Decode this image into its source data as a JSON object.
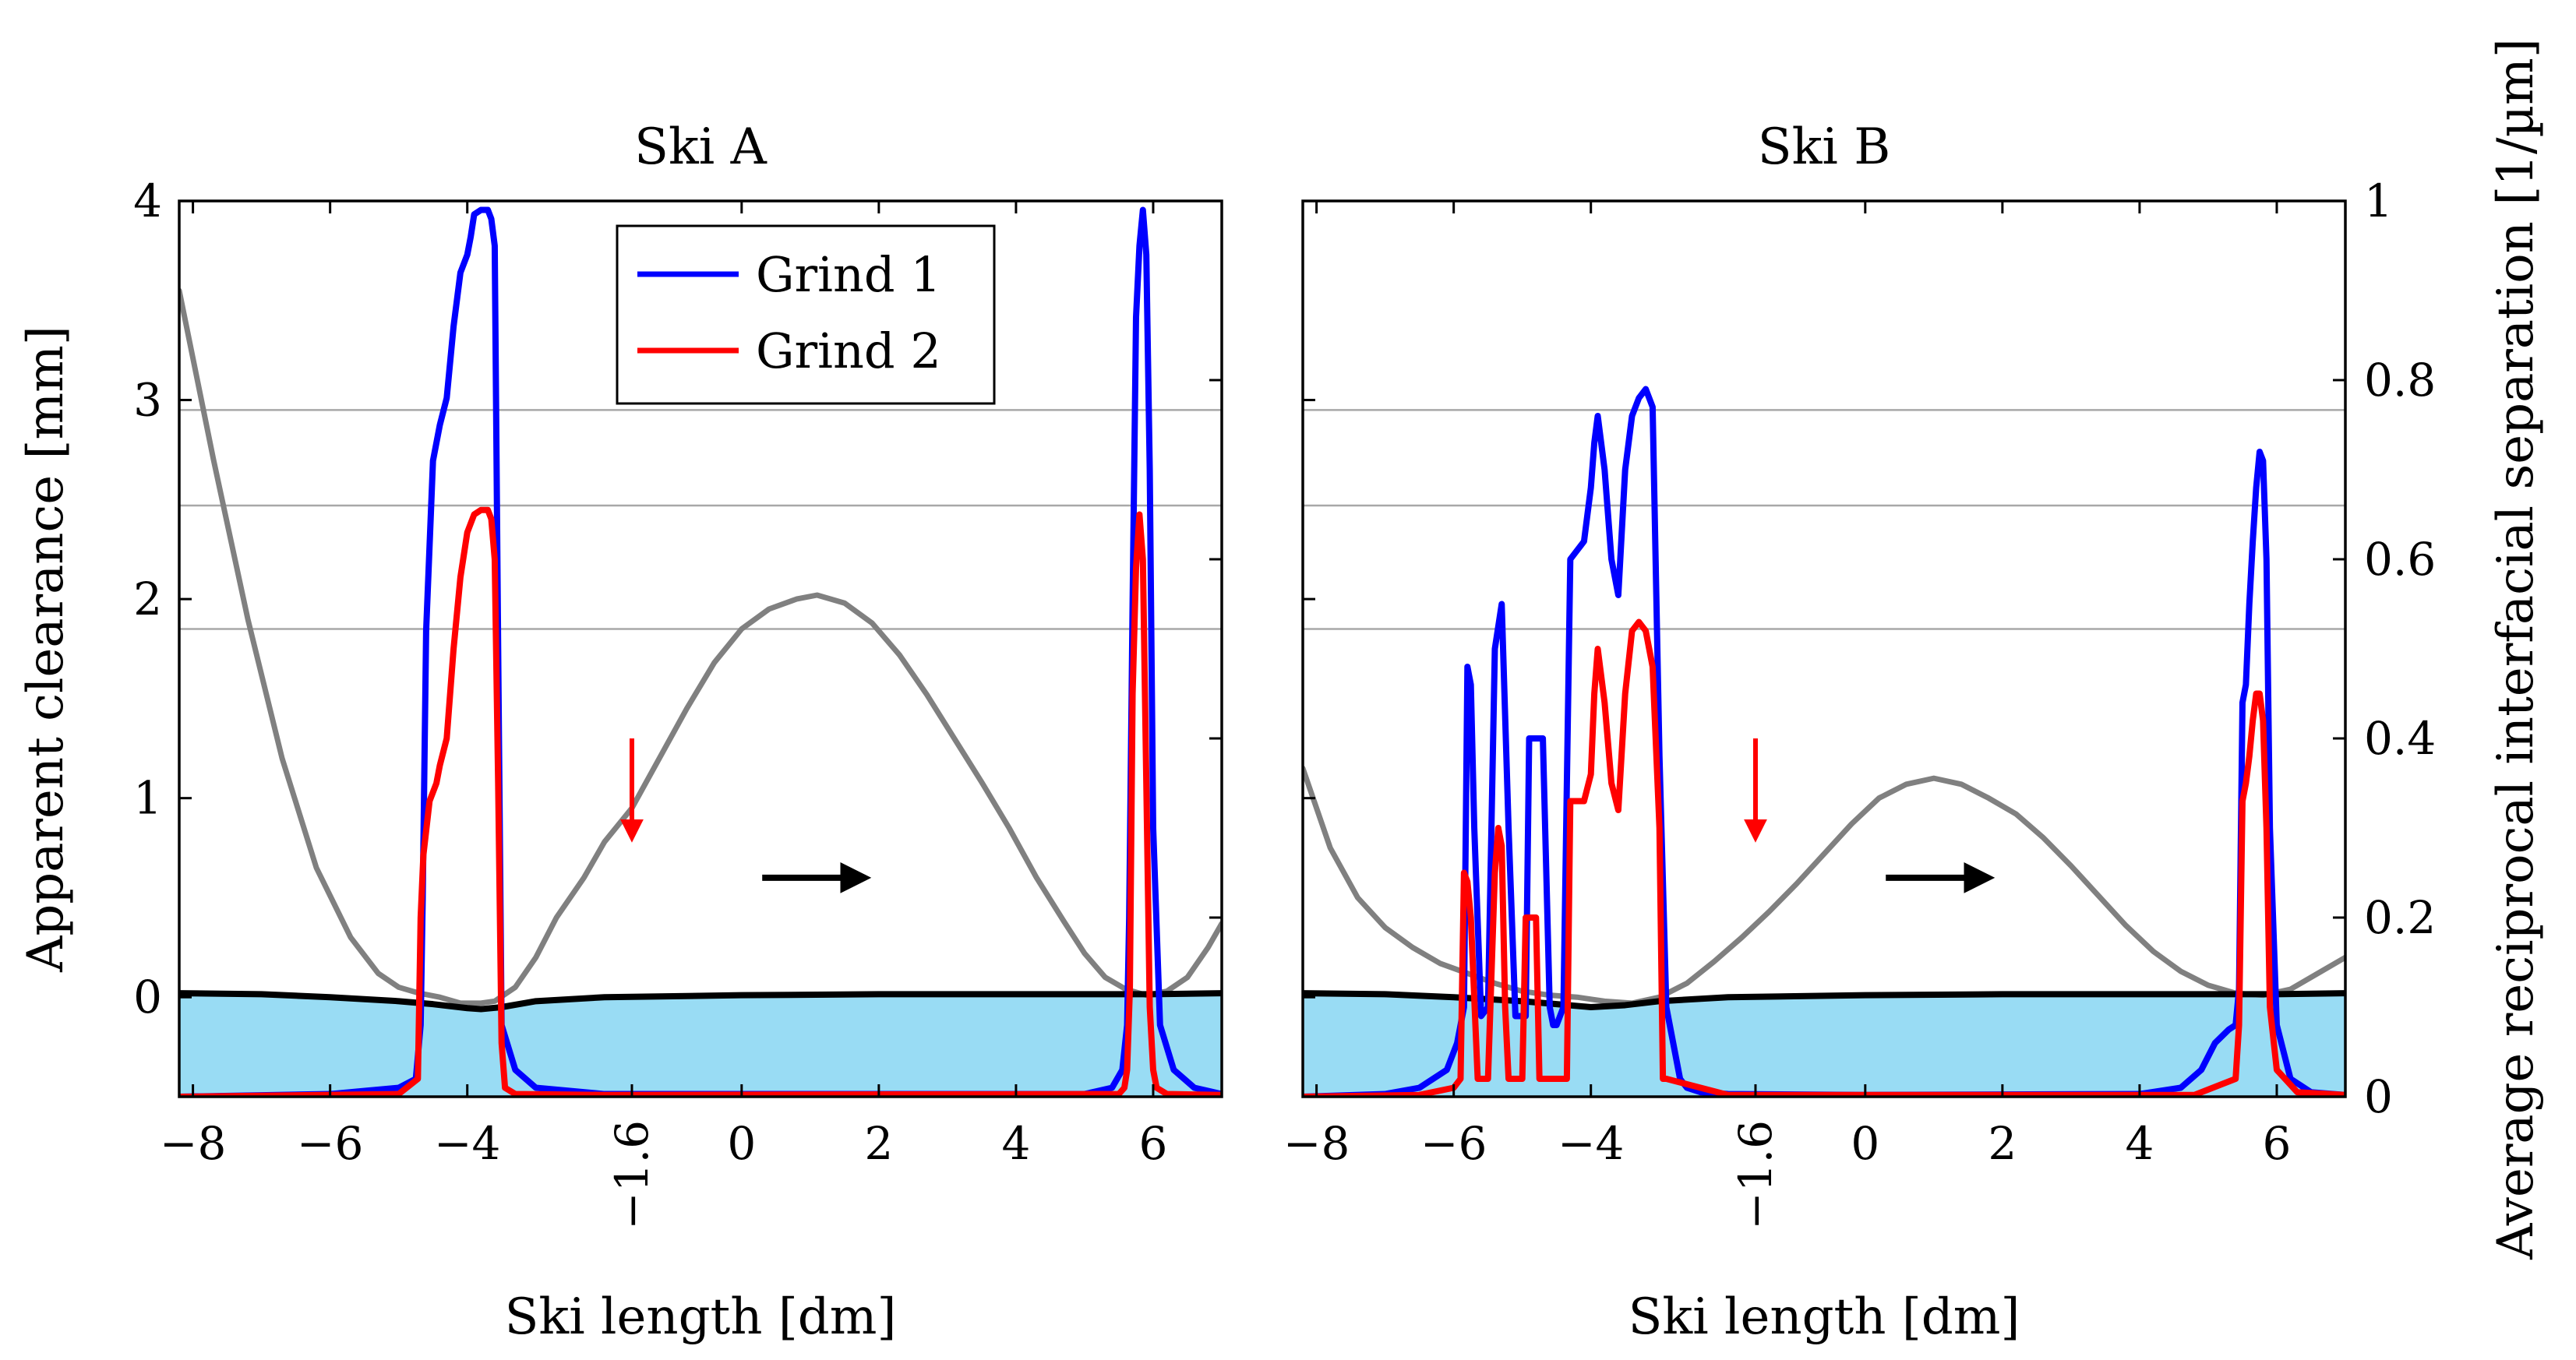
{
  "chart_data": [
    {
      "type": "line",
      "title": "Ski A",
      "xlabel": "Ski length [dm]",
      "ylabel": "Apparent clearance [mm]",
      "y2label": "Average reciprocal interfacial separation [1/µm]",
      "xlim": [
        -8.2,
        7.0
      ],
      "ylim": [
        -0.5,
        4.0
      ],
      "y2lim": [
        0,
        1
      ],
      "xticks": [
        -8,
        -6,
        -4,
        0,
        2,
        4,
        6
      ],
      "xtick_labels": [
        "−8",
        "−6",
        "−4",
        "0",
        "2",
        "4",
        "6"
      ],
      "special_xtick": {
        "value": -1.6,
        "label": "−1.6"
      },
      "yticks": [
        0,
        1,
        2,
        3,
        4
      ],
      "ytick_labels": [
        "0",
        "1",
        "2",
        "3",
        "4"
      ],
      "hlines": [
        4.0,
        2.95,
        2.47,
        1.85
      ],
      "legend": {
        "position": "top-center",
        "entries": [
          {
            "name": "Grind 1",
            "color": "#0000ff"
          },
          {
            "name": "Grind 2",
            "color": "#ff0000"
          }
        ]
      },
      "arrows": [
        {
          "color": "#ff0000",
          "from": [
            -1.6,
            1.3
          ],
          "to": [
            -1.6,
            0.8
          ]
        },
        {
          "color": "#000000",
          "from": [
            0.3,
            0.6
          ],
          "to": [
            1.8,
            0.6
          ]
        }
      ],
      "series": [
        {
          "name": "Grind 1",
          "color": "#0000ff",
          "axis": "right",
          "x": [
            -8.2,
            -6.0,
            -5.0,
            -4.75,
            -4.68,
            -4.65,
            -4.6,
            -4.5,
            -4.4,
            -4.3,
            -4.2,
            -4.1,
            -4.0,
            -3.95,
            -3.9,
            -3.8,
            -3.7,
            -3.65,
            -3.6,
            -3.55,
            -3.5,
            -3.3,
            -3.0,
            -2.0,
            5.0,
            5.4,
            5.55,
            5.62,
            5.65,
            5.7,
            5.75,
            5.8,
            5.85,
            5.9,
            5.95,
            6.0,
            6.1,
            6.3,
            6.6,
            7.0
          ],
          "y": [
            0,
            0.003,
            0.01,
            0.02,
            0.08,
            0.22,
            0.52,
            0.71,
            0.75,
            0.78,
            0.86,
            0.92,
            0.94,
            0.96,
            0.985,
            0.99,
            0.99,
            0.98,
            0.95,
            0.5,
            0.08,
            0.03,
            0.01,
            0.003,
            0.003,
            0.01,
            0.03,
            0.08,
            0.2,
            0.55,
            0.87,
            0.95,
            0.99,
            0.94,
            0.7,
            0.3,
            0.08,
            0.03,
            0.01,
            0.003
          ]
        },
        {
          "name": "Grind 2",
          "color": "#ff0000",
          "axis": "right",
          "x": [
            -8.2,
            -5.0,
            -4.72,
            -4.68,
            -4.64,
            -4.55,
            -4.45,
            -4.4,
            -4.3,
            -4.2,
            -4.1,
            -4.0,
            -3.9,
            -3.8,
            -3.7,
            -3.65,
            -3.6,
            -3.55,
            -3.5,
            -3.45,
            -3.3,
            -2.0,
            5.5,
            5.58,
            5.62,
            5.66,
            5.7,
            5.75,
            5.8,
            5.85,
            5.9,
            5.95,
            6.0,
            6.05,
            6.2,
            7.0
          ],
          "y": [
            0,
            0.003,
            0.02,
            0.2,
            0.27,
            0.33,
            0.35,
            0.37,
            0.4,
            0.5,
            0.58,
            0.63,
            0.65,
            0.655,
            0.655,
            0.645,
            0.6,
            0.35,
            0.06,
            0.01,
            0.003,
            0.002,
            0.003,
            0.01,
            0.03,
            0.12,
            0.45,
            0.59,
            0.65,
            0.6,
            0.35,
            0.1,
            0.03,
            0.01,
            0.003,
            0.002
          ]
        },
        {
          "name": "gray",
          "color": "#808080",
          "axis": "left",
          "x": [
            -8.2,
            -7.7,
            -7.2,
            -6.7,
            -6.2,
            -5.7,
            -5.3,
            -5.0,
            -4.7,
            -4.4,
            -4.1,
            -3.8,
            -3.6,
            -3.3,
            -3.0,
            -2.7,
            -2.3,
            -2.0,
            -1.6,
            -1.2,
            -0.8,
            -0.4,
            0.0,
            0.4,
            0.8,
            1.1,
            1.5,
            1.9,
            2.3,
            2.7,
            3.1,
            3.5,
            3.9,
            4.3,
            4.7,
            5.0,
            5.3,
            5.6,
            5.9,
            6.2,
            6.5,
            6.8,
            7.0
          ],
          "y": [
            3.55,
            2.7,
            1.9,
            1.2,
            0.65,
            0.3,
            0.12,
            0.05,
            0.02,
            0.0,
            -0.03,
            -0.03,
            -0.02,
            0.05,
            0.2,
            0.4,
            0.6,
            0.78,
            0.95,
            1.2,
            1.45,
            1.68,
            1.85,
            1.95,
            2.0,
            2.02,
            1.98,
            1.88,
            1.72,
            1.52,
            1.3,
            1.08,
            0.85,
            0.6,
            0.38,
            0.22,
            0.1,
            0.04,
            0.01,
            0.03,
            0.1,
            0.25,
            0.37
          ]
        },
        {
          "name": "black",
          "color": "#000000",
          "axis": "left",
          "x": [
            -8.2,
            -7.0,
            -6.0,
            -5.0,
            -4.5,
            -4.0,
            -3.8,
            -3.5,
            -3.0,
            -2.0,
            0.0,
            2.0,
            4.0,
            6.0,
            7.0
          ],
          "y": [
            0.02,
            0.015,
            0.0,
            -0.02,
            -0.035,
            -0.055,
            -0.06,
            -0.05,
            -0.02,
            0.0,
            0.01,
            0.015,
            0.015,
            0.015,
            0.02
          ]
        }
      ]
    },
    {
      "type": "line",
      "title": "Ski B",
      "xlabel": "Ski length [dm]",
      "ylabel": "Apparent clearance [mm]",
      "y2label": "Average reciprocal interfacial separation [1/µm]",
      "xlim": [
        -8.2,
        7.0
      ],
      "ylim": [
        -0.5,
        4.0
      ],
      "y2lim": [
        0,
        1
      ],
      "xticks": [
        -8,
        -6,
        -4,
        0,
        2,
        4,
        6
      ],
      "xtick_labels": [
        "−8",
        "−6",
        "−4",
        "0",
        "2",
        "4",
        "6"
      ],
      "special_xtick": {
        "value": -1.6,
        "label": "−1.6"
      },
      "y2ticks": [
        0,
        0.2,
        0.4,
        0.6,
        0.8,
        1
      ],
      "y2tick_labels": [
        "0",
        "0.2",
        "0.4",
        "0.6",
        "0.8",
        "1"
      ],
      "hlines": [
        4.0,
        2.95,
        2.47,
        1.85
      ],
      "arrows": [
        {
          "color": "#ff0000",
          "from": [
            -1.6,
            1.3
          ],
          "to": [
            -1.6,
            0.8
          ]
        },
        {
          "color": "#000000",
          "from": [
            0.3,
            0.6
          ],
          "to": [
            1.8,
            0.6
          ]
        }
      ],
      "series": [
        {
          "name": "Grind 1",
          "color": "#0000ff",
          "axis": "right",
          "x": [
            -8.2,
            -7.0,
            -6.5,
            -6.1,
            -5.95,
            -5.85,
            -5.8,
            -5.75,
            -5.7,
            -5.6,
            -5.5,
            -5.4,
            -5.3,
            -5.2,
            -5.1,
            -5.0,
            -4.95,
            -4.9,
            -4.8,
            -4.7,
            -4.6,
            -4.55,
            -4.5,
            -4.4,
            -4.3,
            -4.2,
            -4.1,
            -4.0,
            -3.95,
            -3.9,
            -3.8,
            -3.7,
            -3.6,
            -3.5,
            -3.4,
            -3.3,
            -3.2,
            -3.1,
            -3.0,
            -2.9,
            -2.8,
            -2.75,
            -2.7,
            -2.6,
            -2.4,
            -2.0,
            0.0,
            4.0,
            4.6,
            4.9,
            5.1,
            5.3,
            5.4,
            5.45,
            5.5,
            5.55,
            5.6,
            5.65,
            5.7,
            5.75,
            5.8,
            5.85,
            5.9,
            6.0,
            6.2,
            6.5,
            7.0
          ],
          "y": [
            0,
            0.003,
            0.01,
            0.03,
            0.06,
            0.1,
            0.48,
            0.46,
            0.3,
            0.09,
            0.1,
            0.5,
            0.55,
            0.3,
            0.09,
            0.09,
            0.09,
            0.4,
            0.4,
            0.4,
            0.1,
            0.08,
            0.08,
            0.1,
            0.6,
            0.61,
            0.62,
            0.68,
            0.73,
            0.76,
            0.7,
            0.6,
            0.56,
            0.7,
            0.76,
            0.78,
            0.79,
            0.77,
            0.38,
            0.1,
            0.06,
            0.04,
            0.02,
            0.01,
            0.005,
            0.003,
            0.002,
            0.003,
            0.01,
            0.03,
            0.06,
            0.075,
            0.08,
            0.12,
            0.44,
            0.46,
            0.55,
            0.62,
            0.68,
            0.72,
            0.71,
            0.6,
            0.3,
            0.08,
            0.02,
            0.005,
            0.002
          ]
        },
        {
          "name": "Grind 2",
          "color": "#ff0000",
          "axis": "right",
          "x": [
            -8.2,
            -6.5,
            -6.0,
            -5.9,
            -5.85,
            -5.8,
            -5.75,
            -5.65,
            -5.6,
            -5.5,
            -5.4,
            -5.35,
            -5.3,
            -5.25,
            -5.2,
            -5.1,
            -5.0,
            -4.95,
            -4.9,
            -4.8,
            -4.75,
            -4.7,
            -4.6,
            -4.5,
            -4.35,
            -4.3,
            -4.2,
            -4.1,
            -4.0,
            -3.95,
            -3.9,
            -3.8,
            -3.7,
            -3.6,
            -3.5,
            -3.4,
            -3.3,
            -3.2,
            -3.1,
            -3.0,
            -2.95,
            -2.9,
            -2.0,
            4.8,
            5.4,
            5.45,
            5.5,
            5.55,
            5.6,
            5.65,
            5.7,
            5.75,
            5.8,
            5.85,
            5.9,
            6.0,
            6.3,
            7.0
          ],
          "y": [
            0,
            0.002,
            0.01,
            0.02,
            0.25,
            0.24,
            0.2,
            0.02,
            0.02,
            0.02,
            0.25,
            0.3,
            0.28,
            0.1,
            0.02,
            0.02,
            0.02,
            0.2,
            0.2,
            0.2,
            0.02,
            0.02,
            0.02,
            0.02,
            0.02,
            0.33,
            0.33,
            0.33,
            0.36,
            0.45,
            0.5,
            0.44,
            0.35,
            0.32,
            0.45,
            0.52,
            0.53,
            0.52,
            0.48,
            0.3,
            0.02,
            0.02,
            0.002,
            0.002,
            0.02,
            0.08,
            0.33,
            0.35,
            0.38,
            0.42,
            0.45,
            0.45,
            0.42,
            0.3,
            0.1,
            0.03,
            0.005,
            0.002
          ]
        },
        {
          "name": "gray",
          "color": "#808080",
          "axis": "left",
          "x": [
            -8.2,
            -7.8,
            -7.4,
            -7.0,
            -6.6,
            -6.2,
            -5.8,
            -5.4,
            -5.0,
            -4.6,
            -4.2,
            -3.8,
            -3.4,
            -3.0,
            -2.6,
            -2.2,
            -1.8,
            -1.4,
            -1.0,
            -0.6,
            -0.2,
            0.2,
            0.6,
            1.0,
            1.4,
            1.8,
            2.2,
            2.6,
            3.0,
            3.4,
            3.8,
            4.2,
            4.6,
            5.0,
            5.4,
            5.8,
            6.2,
            6.6,
            7.0
          ],
          "y": [
            1.15,
            0.75,
            0.5,
            0.35,
            0.25,
            0.17,
            0.12,
            0.07,
            0.03,
            0.01,
            0.0,
            -0.02,
            -0.03,
            0.0,
            0.07,
            0.18,
            0.3,
            0.43,
            0.57,
            0.72,
            0.87,
            1.0,
            1.07,
            1.1,
            1.07,
            1.0,
            0.92,
            0.8,
            0.66,
            0.51,
            0.36,
            0.23,
            0.13,
            0.06,
            0.02,
            0.01,
            0.04,
            0.12,
            0.2
          ]
        },
        {
          "name": "black",
          "color": "#000000",
          "axis": "left",
          "x": [
            -8.2,
            -7.0,
            -6.0,
            -5.0,
            -4.5,
            -4.0,
            -3.5,
            -3.0,
            -2.0,
            0.0,
            2.0,
            4.0,
            6.0,
            7.0
          ],
          "y": [
            0.02,
            0.015,
            0.0,
            -0.02,
            -0.035,
            -0.05,
            -0.04,
            -0.02,
            0.0,
            0.01,
            0.015,
            0.015,
            0.015,
            0.02
          ]
        }
      ]
    }
  ]
}
